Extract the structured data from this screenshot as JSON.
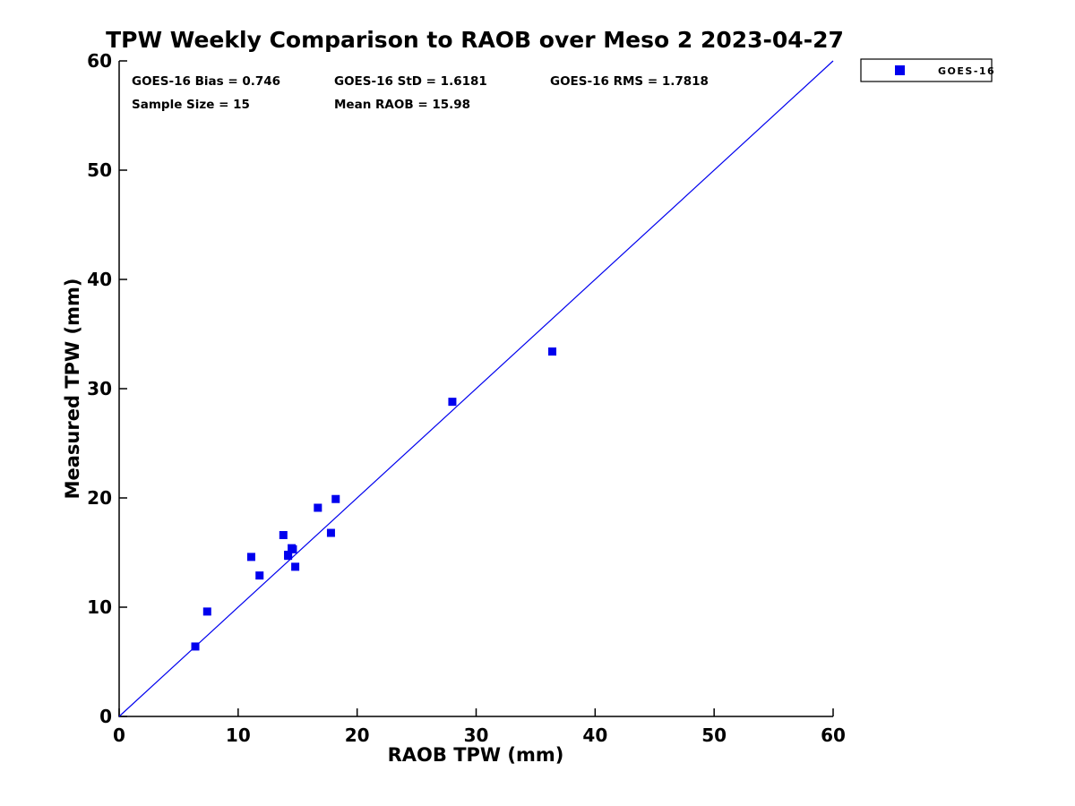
{
  "title": "TPW Weekly Comparison to RAOB over Meso 2 2023-04-27",
  "stats": {
    "bias": "GOES-16 Bias = 0.746",
    "std": "GOES-16 StD = 1.6181",
    "rms": "GOES-16 RMS = 1.7818",
    "sample_size": "Sample Size = 15",
    "mean_raob": "Mean RAOB = 15.98"
  },
  "legend": {
    "position": "outside-top-right",
    "items": [
      {
        "label": "GOES-16",
        "marker": "square",
        "color": "#0000EE"
      }
    ]
  },
  "colors": {
    "marker": "#0000EE",
    "reference_line": "#0000EE",
    "axis": "#000000",
    "background": "#FFFFFF"
  },
  "chart_data": {
    "type": "scatter",
    "title": "TPW Weekly Comparison to RAOB over Meso 2 2023-04-27",
    "xlabel": "RAOB TPW (mm)",
    "ylabel": "Measured TPW (mm)",
    "xlim": [
      0,
      60
    ],
    "ylim": [
      0,
      60
    ],
    "xticks": [
      0,
      10,
      20,
      30,
      40,
      50,
      60
    ],
    "yticks": [
      0,
      10,
      20,
      30,
      40,
      50,
      60
    ],
    "grid": false,
    "legend_position": "outside upper right",
    "series": [
      {
        "name": "GOES-16",
        "marker": "square",
        "color": "#0000EE",
        "points": [
          [
            6.4,
            6.4
          ],
          [
            7.4,
            9.6
          ],
          [
            11.1,
            14.6
          ],
          [
            11.8,
            12.9
          ],
          [
            13.8,
            16.6
          ],
          [
            14.2,
            14.7
          ],
          [
            14.2,
            14.8
          ],
          [
            14.5,
            15.4
          ],
          [
            14.6,
            15.3
          ],
          [
            14.8,
            13.7
          ],
          [
            16.7,
            19.1
          ],
          [
            17.8,
            16.8
          ],
          [
            18.2,
            19.9
          ],
          [
            28.0,
            28.8
          ],
          [
            36.4,
            33.4
          ]
        ]
      }
    ],
    "reference_line": {
      "label": "1:1 line",
      "from": [
        0,
        0
      ],
      "to": [
        60,
        60
      ],
      "color": "#0000EE"
    },
    "annotations": [
      "GOES-16 Bias = 0.746",
      "GOES-16 StD = 1.6181",
      "GOES-16 RMS = 1.7818",
      "Sample Size = 15",
      "Mean RAOB = 15.98"
    ]
  }
}
